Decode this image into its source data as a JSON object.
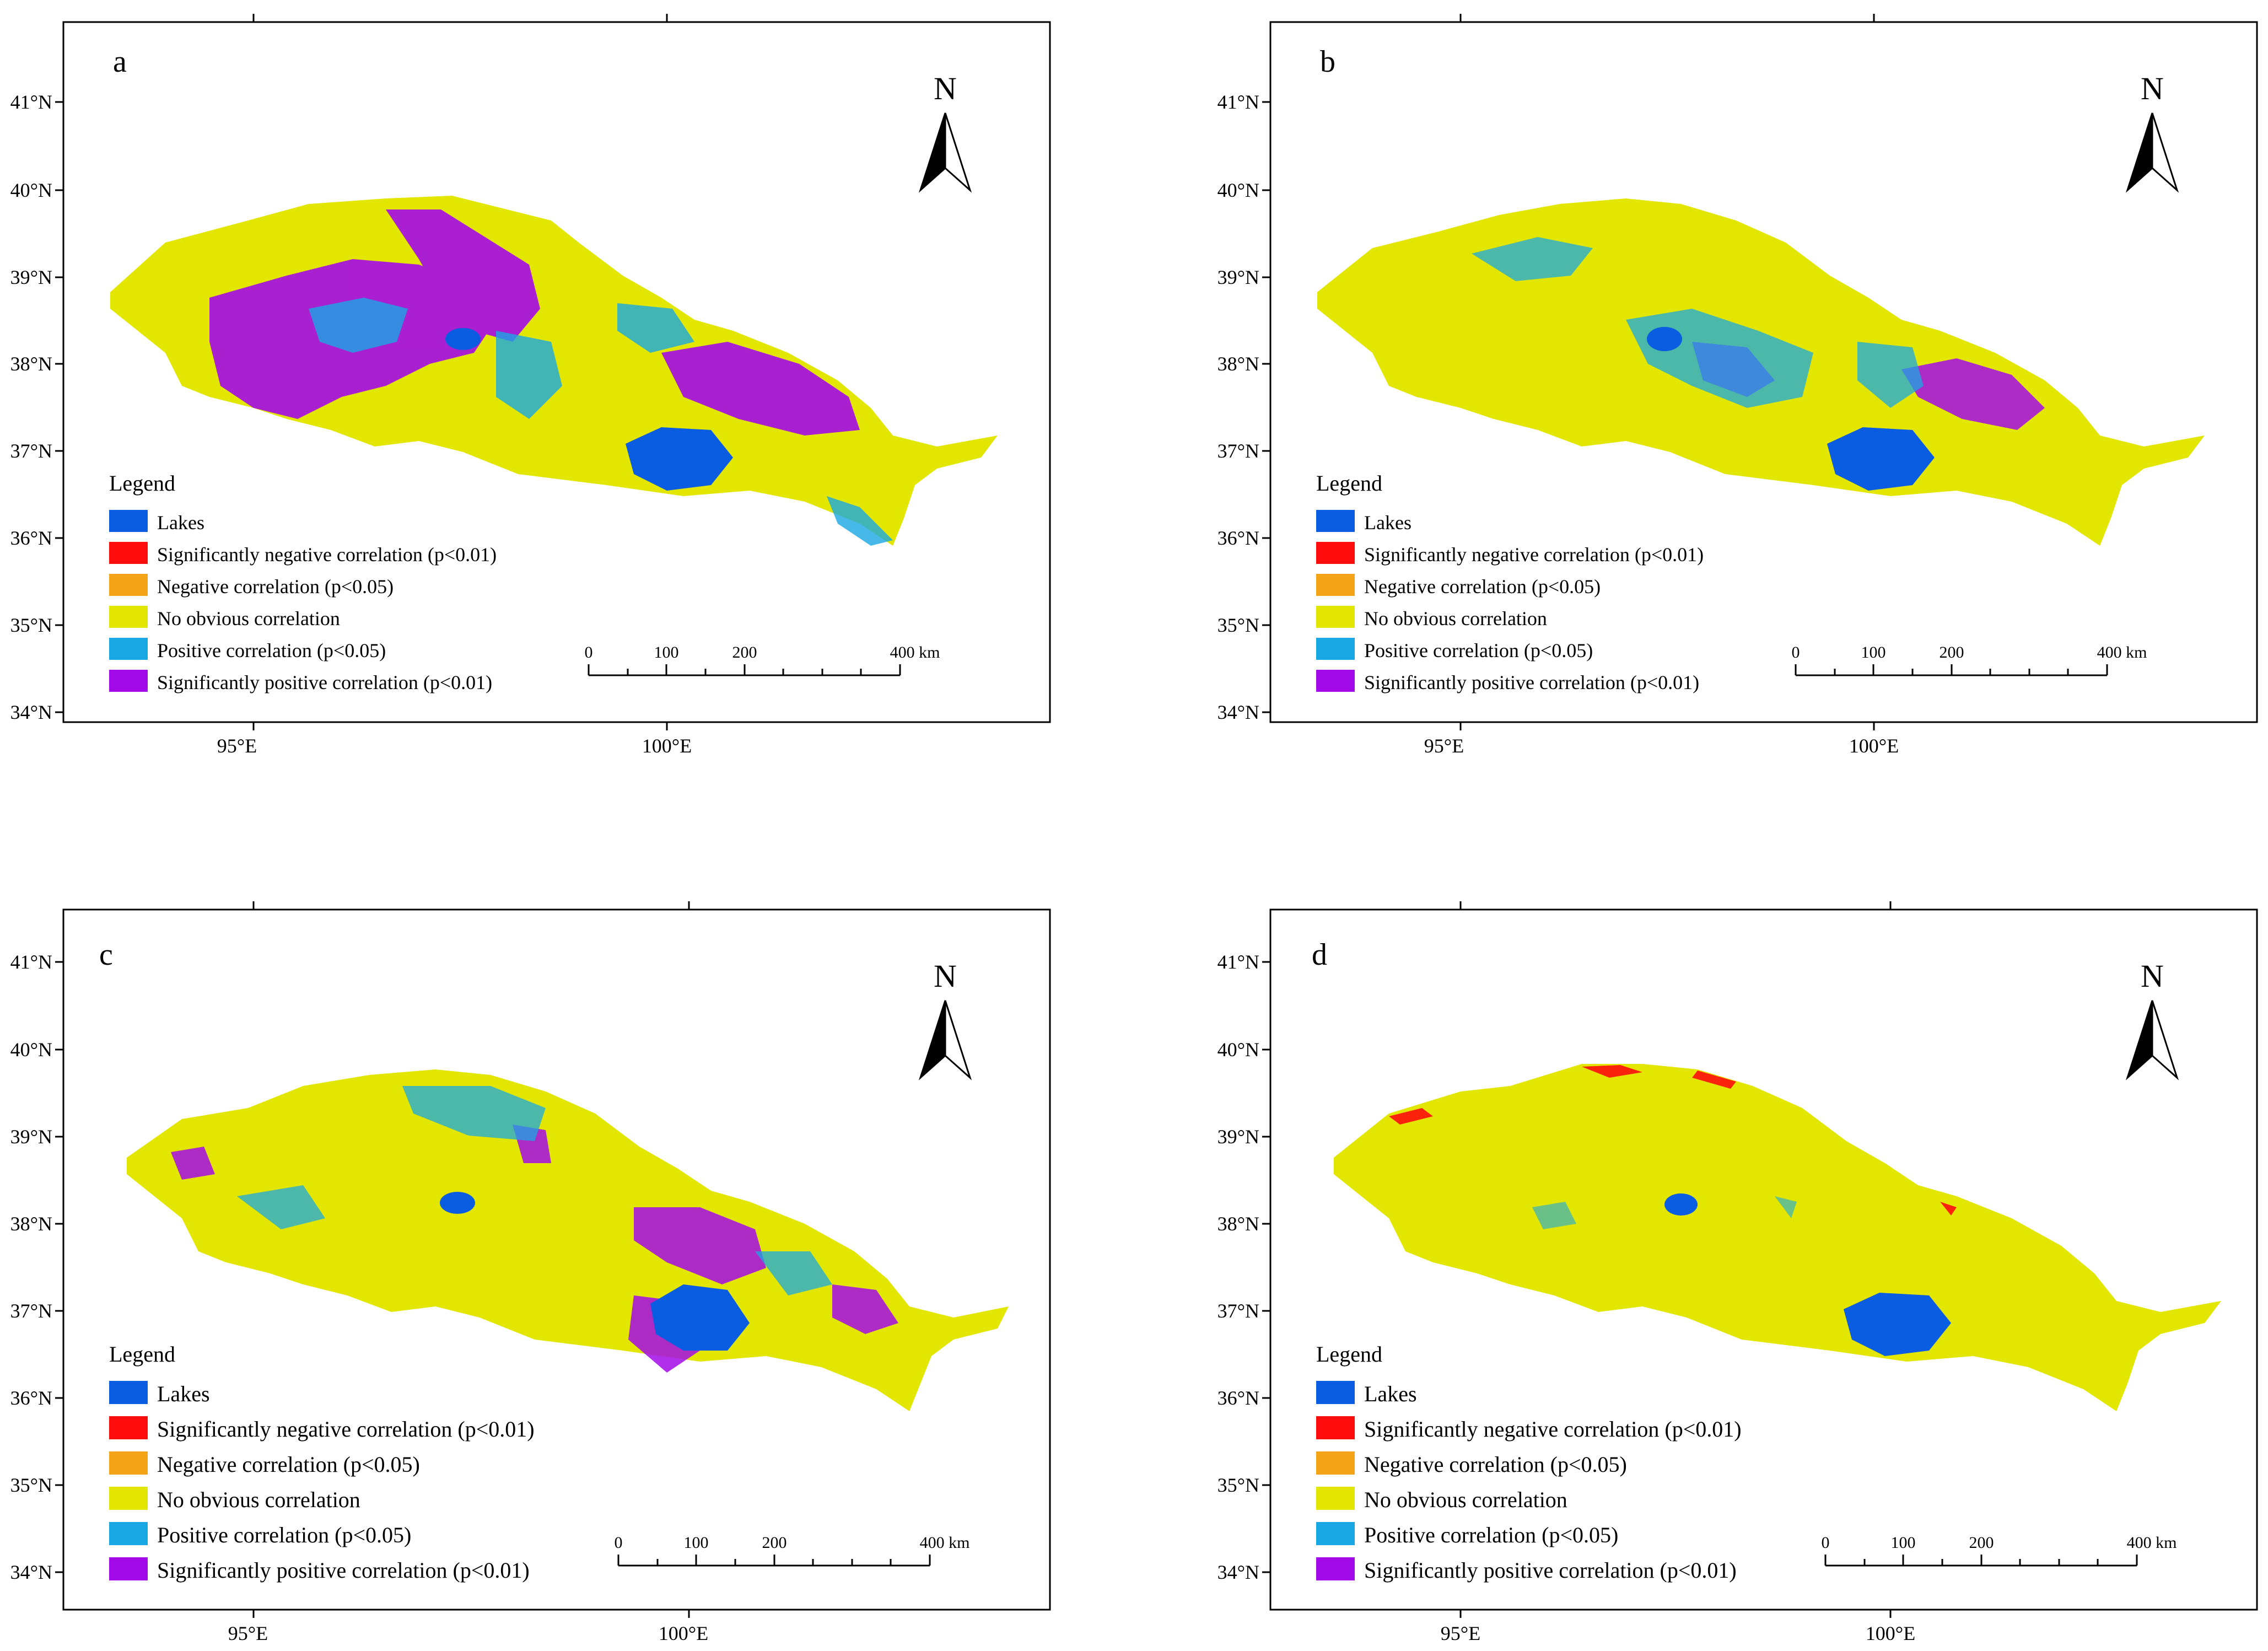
{
  "legend": {
    "title": "Legend",
    "items": [
      {
        "label": "Lakes",
        "color": "#0a5ce0"
      },
      {
        "label": "Significantly negative correlation (p<0.01)",
        "color": "#ff0d0d"
      },
      {
        "label": "Negative correlation (p<0.05)",
        "color": "#f5a319"
      },
      {
        "label": "No obvious correlation",
        "color": "#e2e600"
      },
      {
        "label": "Positive correlation (p<0.05)",
        "color": "#19a8e3"
      },
      {
        "label": "Significantly positive correlation (p<0.01)",
        "color": "#a30ae8"
      }
    ]
  },
  "axes": {
    "lat_labels": [
      "41°N",
      "40°N",
      "39°N",
      "38°N",
      "37°N",
      "36°N",
      "35°N",
      "34°N"
    ],
    "lon_labels": [
      "95°E",
      "100°E"
    ]
  },
  "north_arrow": {
    "label": "N"
  },
  "scale_bar": {
    "ticks": [
      "0",
      "100",
      "200",
      "400 km"
    ]
  },
  "panels": [
    {
      "id": "a",
      "label": "a"
    },
    {
      "id": "b",
      "label": "b"
    },
    {
      "id": "c",
      "label": "c"
    },
    {
      "id": "d",
      "label": "d"
    }
  ],
  "colors": {
    "lake": "#0a5ce0",
    "neg_strong": "#ff0d0d",
    "neg": "#f5a319",
    "none": "#e2e600",
    "pos": "#19a8e3",
    "pos_strong": "#a30ae8"
  }
}
